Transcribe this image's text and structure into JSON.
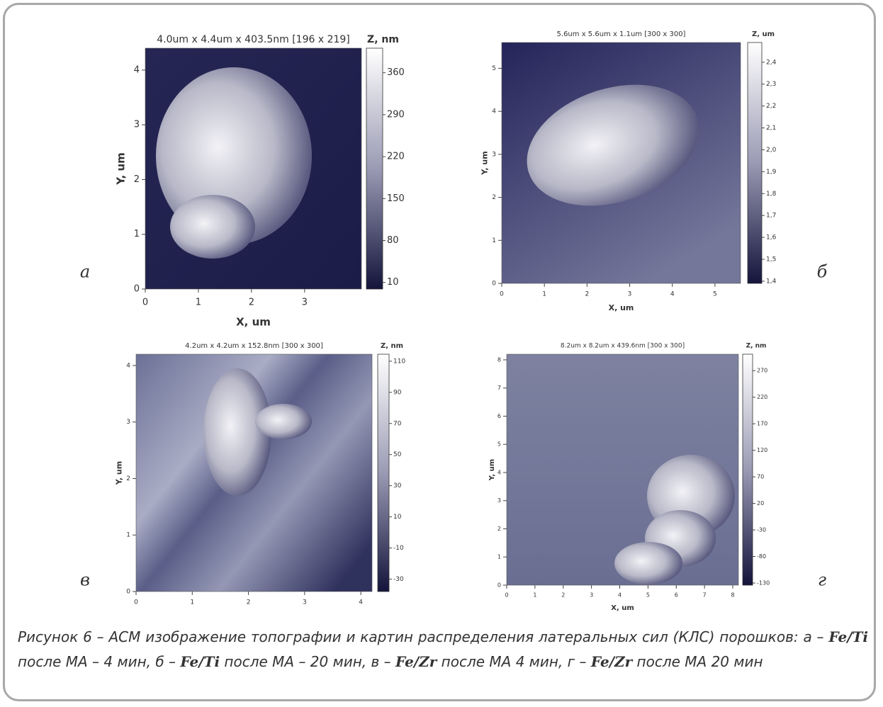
{
  "panels": [
    {
      "title": "4.0um x 4.4um x 403.5nm [196 x 219]",
      "z_label": "Z, nm",
      "x_label": "X, um",
      "y_label": "Y, um",
      "letter": "а",
      "xlim": [
        0,
        4.07
      ],
      "ylim": [
        0,
        4.4
      ],
      "zlim": [
        -1,
        401
      ],
      "xticks": [
        0,
        1,
        2,
        3
      ],
      "yticks": [
        0,
        1,
        2,
        3,
        4
      ],
      "zticks": [
        360,
        290,
        220,
        150,
        80,
        10
      ]
    },
    {
      "title": "5.6um x 5.6um x 1.1um [300 x 300]",
      "z_label": "Z, um",
      "x_label": "X, um",
      "y_label": "Y, um",
      "letter": "б",
      "xlim": [
        0,
        5.6
      ],
      "ylim": [
        0,
        5.6
      ],
      "zlim": [
        1.39,
        2.49
      ],
      "xticks": [
        0,
        1,
        2,
        3,
        4,
        5
      ],
      "yticks": [
        0,
        1,
        2,
        3,
        4,
        5
      ],
      "zticks": [
        {
          "value": 2.4,
          "label": "2,4"
        },
        {
          "value": 2.3,
          "label": "2,3"
        },
        {
          "value": 2.2,
          "label": "2,2"
        },
        {
          "value": 2.1,
          "label": "2,1"
        },
        {
          "value": 2.0,
          "label": "2,0"
        },
        {
          "value": 1.9,
          "label": "1,9"
        },
        {
          "value": 1.8,
          "label": "1,8"
        },
        {
          "value": 1.7,
          "label": "1,7"
        },
        {
          "value": 1.6,
          "label": "1,6"
        },
        {
          "value": 1.5,
          "label": "1,5"
        },
        {
          "value": 1.4,
          "label": "1,4"
        }
      ]
    },
    {
      "title": "4.2um x 4.2um x 152.8nm [300 x 300]",
      "z_label": "Z, nm",
      "y_label": "Y, um",
      "letter": "в",
      "xlim": [
        0,
        4.2
      ],
      "ylim": [
        0,
        4.2
      ],
      "zlim": [
        -38,
        114.5
      ],
      "xticks": [
        0,
        1,
        2,
        3,
        4
      ],
      "yticks": [
        0,
        1,
        2,
        3,
        4
      ],
      "zticks": [
        110,
        90,
        70,
        50,
        30,
        10,
        -10,
        -30
      ]
    },
    {
      "title": "8.2um x 8.2um x 439.6nm [300 x 300]",
      "z_label": "Z, nm",
      "x_label": "X, um",
      "y_label": "Y, um",
      "letter": "г",
      "xlim": [
        0,
        8.2
      ],
      "ylim": [
        0,
        8.2
      ],
      "zlim": [
        -134,
        301
      ],
      "xticks": [
        0,
        1,
        2,
        3,
        4,
        5,
        6,
        7,
        8
      ],
      "yticks": [
        0,
        1,
        2,
        3,
        4,
        5,
        6,
        7,
        8
      ],
      "zticks": [
        270,
        220,
        170,
        120,
        70,
        20,
        -30,
        -80,
        -130
      ]
    }
  ],
  "caption": [
    "Рисунок 6 – АСМ изображение топографии и картин распределения латеральных сил (КЛС) порошков: а – ",
    "Fe/Ti",
    " после МА – 4 мин, б – ",
    "Fe/Ti",
    " после МА – 20 мин, в – ",
    "Fe/Zr",
    " после МА 4 мин, г – ",
    "Fe/Zr",
    " после МА 20 мин"
  ]
}
